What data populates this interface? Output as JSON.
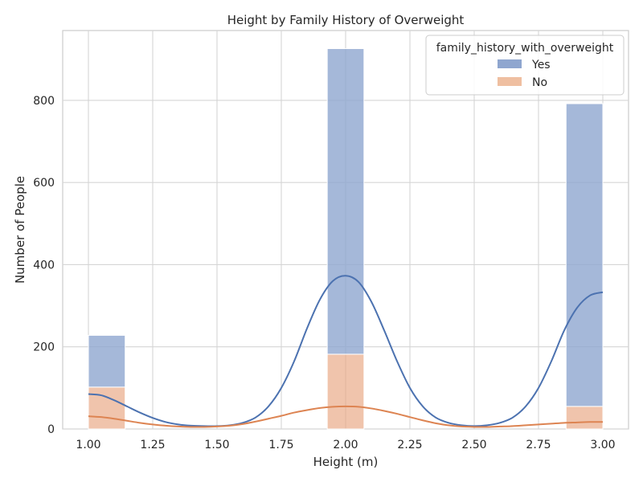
{
  "chart_data": {
    "type": "bar",
    "stacked": true,
    "title": "Height by Family History of Overweight",
    "xlabel": "Height (m)",
    "ylabel": "Number of People",
    "xlim": [
      0.9,
      3.1
    ],
    "ylim": [
      0,
      970
    ],
    "xticks": [
      1.0,
      1.25,
      1.5,
      1.75,
      2.0,
      2.25,
      2.5,
      2.75,
      3.0
    ],
    "xtick_labels": [
      "1.00",
      "1.25",
      "1.50",
      "1.75",
      "2.00",
      "2.25",
      "2.50",
      "2.75",
      "3.00"
    ],
    "yticks": [
      0,
      200,
      400,
      600,
      800
    ],
    "ytick_labels": [
      "0",
      "200",
      "400",
      "600",
      "800"
    ],
    "grid": true,
    "legend": {
      "title": "family_history_with_overweight",
      "placement": "top-right",
      "entries": [
        "Yes",
        "No"
      ]
    },
    "bins": [
      {
        "x0": 1.0,
        "x1": 1.1429
      },
      {
        "x0": 1.9286,
        "x1": 2.0714
      },
      {
        "x0": 2.8571,
        "x1": 3.0
      }
    ],
    "series": [
      {
        "name": "No",
        "color": "#e8a57f",
        "values": [
          102,
          182,
          55
        ]
      },
      {
        "name": "Yes",
        "color": "#8fa6cf",
        "values": [
          126,
          744,
          737
        ]
      }
    ],
    "kde": [
      {
        "series": "Yes",
        "color": "#4c72b0",
        "x": [
          1.0,
          1.05,
          1.1,
          1.15,
          1.2,
          1.25,
          1.3,
          1.35,
          1.4,
          1.45,
          1.5,
          1.55,
          1.6,
          1.65,
          1.7,
          1.75,
          1.8,
          1.85,
          1.9,
          1.95,
          2.0,
          2.05,
          2.1,
          2.15,
          2.2,
          2.25,
          2.3,
          2.35,
          2.4,
          2.45,
          2.5,
          2.55,
          2.6,
          2.65,
          2.7,
          2.75,
          2.8,
          2.85,
          2.9,
          2.95,
          3.0
        ],
        "y": [
          85,
          82,
          70,
          55,
          40,
          27,
          17,
          11,
          8,
          7,
          7,
          9,
          15,
          28,
          55,
          100,
          165,
          245,
          315,
          360,
          373,
          358,
          310,
          240,
          165,
          100,
          55,
          28,
          15,
          9,
          7,
          9,
          15,
          28,
          55,
          100,
          165,
          240,
          295,
          325,
          333
        ]
      },
      {
        "series": "No",
        "color": "#dd8452",
        "x": [
          1.0,
          1.05,
          1.1,
          1.15,
          1.2,
          1.25,
          1.3,
          1.35,
          1.4,
          1.45,
          1.5,
          1.55,
          1.6,
          1.65,
          1.7,
          1.75,
          1.8,
          1.85,
          1.9,
          1.95,
          2.0,
          2.05,
          2.1,
          2.15,
          2.2,
          2.25,
          2.3,
          2.35,
          2.4,
          2.45,
          2.5,
          2.55,
          2.6,
          2.65,
          2.7,
          2.75,
          2.8,
          2.85,
          2.9,
          2.95,
          3.0
        ],
        "y": [
          31,
          29,
          25,
          20,
          15,
          11,
          8,
          6,
          5,
          5,
          6,
          8,
          12,
          18,
          25,
          32,
          40,
          46,
          51,
          54,
          55,
          54,
          50,
          44,
          37,
          29,
          21,
          14,
          9,
          6,
          5,
          5,
          6,
          7,
          9,
          11,
          13,
          15,
          16,
          17,
          17
        ]
      }
    ]
  }
}
